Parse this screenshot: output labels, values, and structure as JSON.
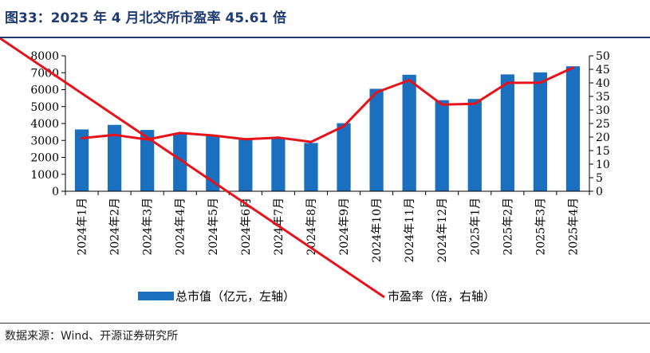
{
  "title": "图33：2025 年 4 月北交所市盈率 45.61 倍",
  "source": "数据来源：Wind、开源证券研究所",
  "colors": {
    "bar": "#1a6fbf",
    "line": "#e8121b",
    "title": "#1f3b73"
  },
  "chart_data": {
    "type": "bar+line",
    "categories": [
      "2024年1月",
      "2024年2月",
      "2024年3月",
      "2024年4月",
      "2024年5月",
      "2024年6月",
      "2024年7月",
      "2024年8月",
      "2024年9月",
      "2024年10月",
      "2024年11月",
      "2024年12月",
      "2025年1月",
      "2025年2月",
      "2025年3月",
      "2025年4月"
    ],
    "series": [
      {
        "name": "总市值（亿元，左轴）",
        "type": "bar",
        "axis": "left",
        "values": [
          3650,
          3920,
          3620,
          3420,
          3280,
          3050,
          3120,
          2850,
          4020,
          6050,
          6880,
          5380,
          5450,
          6900,
          7020,
          7380
        ]
      },
      {
        "name": "市盈率（倍，右轴）",
        "type": "line",
        "axis": "right",
        "values": [
          19.6,
          20.8,
          19.1,
          21.5,
          20.6,
          19.2,
          19.8,
          18.2,
          24.0,
          36.5,
          41.0,
          32.0,
          32.3,
          40.0,
          40.1,
          45.61
        ]
      }
    ],
    "left_axis": {
      "min": 0,
      "max": 8000,
      "ticks": [
        "0",
        "1000",
        "2000",
        "3000",
        "4000",
        "5000",
        "6000",
        "7000",
        "8000"
      ]
    },
    "right_axis": {
      "min": 0,
      "max": 50,
      "ticks": [
        "0",
        "5",
        "10",
        "15",
        "20",
        "25",
        "30",
        "35",
        "40",
        "45",
        "50"
      ]
    },
    "grid": false,
    "legend_position": "bottom"
  }
}
